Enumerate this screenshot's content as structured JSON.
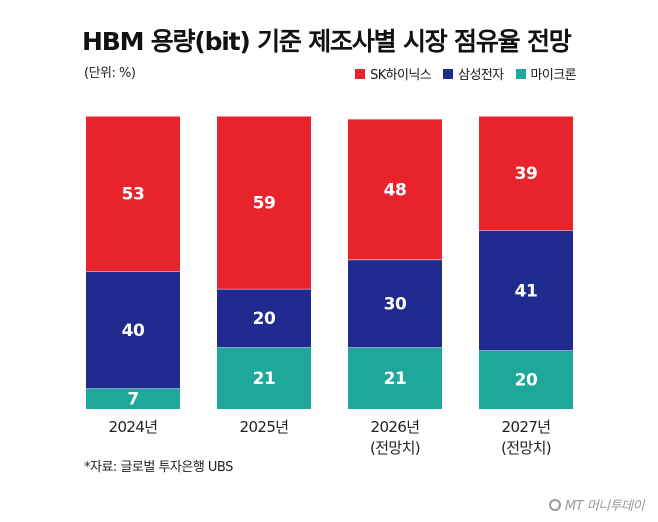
{
  "chart_data": {
    "type": "bar",
    "stacked": true,
    "title": "HBM 용량(bit) 기준 제조사별 시장 점유율 전망",
    "unit_note": "(단위: %)",
    "categories": [
      [
        "2024년"
      ],
      [
        "2025년"
      ],
      [
        "2026년",
        "(전망치)"
      ],
      [
        "2027년",
        "(전망치)"
      ]
    ],
    "series": [
      {
        "name": "SK하이닉스",
        "color": "#e8232b",
        "values": [
          53,
          59,
          48,
          39
        ]
      },
      {
        "name": "삼성전자",
        "color": "#1f2b8f",
        "values": [
          40,
          20,
          30,
          41
        ]
      },
      {
        "name": "마이크론",
        "color": "#1ea89b",
        "values": [
          7,
          21,
          21,
          20
        ]
      }
    ],
    "ylim": [
      0,
      100
    ],
    "legend_position": "top-right",
    "grid": false
  },
  "source": "*자료: 글로벌 투자은행 UBS",
  "logo_text": "MT 머니투데이"
}
